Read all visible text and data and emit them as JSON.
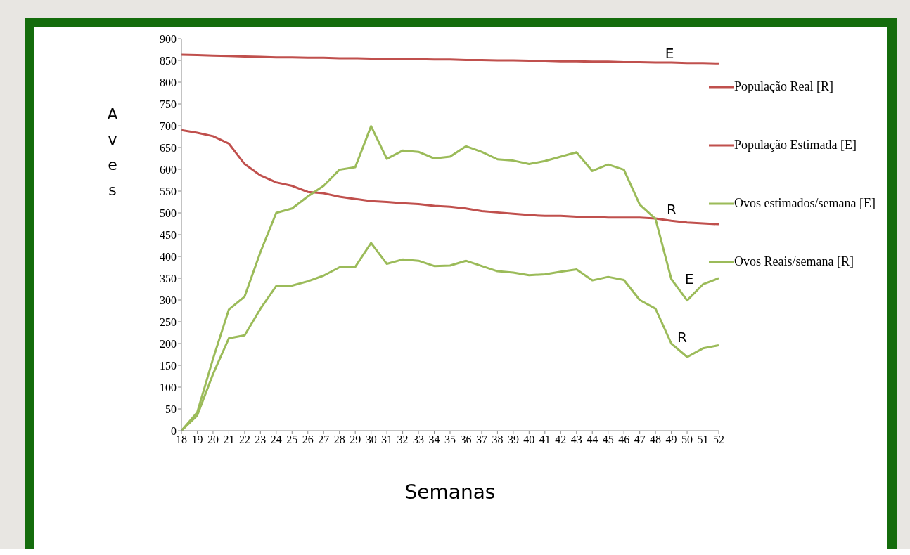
{
  "chart_data": {
    "type": "line",
    "xlabel": "Semanas",
    "ylabel": "Aves",
    "x": [
      18,
      19,
      20,
      21,
      22,
      23,
      24,
      25,
      26,
      27,
      28,
      29,
      30,
      31,
      32,
      33,
      34,
      35,
      36,
      37,
      38,
      39,
      40,
      41,
      42,
      43,
      44,
      45,
      46,
      47,
      48,
      49,
      50,
      51,
      52
    ],
    "xlim": [
      18,
      52
    ],
    "xticks": [
      18,
      19,
      20,
      21,
      22,
      23,
      24,
      25,
      26,
      27,
      28,
      29,
      30,
      31,
      32,
      33,
      34,
      35,
      36,
      37,
      38,
      39,
      40,
      41,
      42,
      43,
      44,
      45,
      46,
      47,
      48,
      49,
      50,
      51,
      52
    ],
    "ylim": [
      0,
      900
    ],
    "yticks": [
      0,
      50,
      100,
      150,
      200,
      250,
      300,
      350,
      400,
      450,
      500,
      550,
      600,
      650,
      700,
      750,
      800,
      850,
      900
    ],
    "grid": false,
    "legend": "right",
    "marker": "none",
    "line_style": "solid",
    "series": [
      {
        "name": "População Real [R]",
        "color": "#c0504d",
        "values": [
          690,
          684,
          676,
          659,
          612,
          586,
          570,
          562,
          548,
          545,
          537,
          532,
          527,
          525,
          522,
          520,
          516,
          514,
          510,
          504,
          501,
          498,
          495,
          493,
          493,
          491,
          491,
          489,
          489,
          489,
          487,
          482,
          478,
          476,
          474
        ]
      },
      {
        "name": "População Estimada [E]",
        "color": "#c0504d",
        "values": [
          863,
          862,
          861,
          860,
          859,
          858,
          857,
          857,
          856,
          856,
          855,
          855,
          854,
          854,
          853,
          853,
          852,
          852,
          851,
          851,
          850,
          850,
          849,
          849,
          848,
          848,
          847,
          847,
          846,
          846,
          845,
          845,
          844,
          844,
          843
        ]
      },
      {
        "name": "Ovos estimados/semana [E]",
        "color": "#9bbb59",
        "values": [
          0,
          42,
          165,
          278,
          308,
          410,
          500,
          510,
          538,
          562,
          599,
          605,
          699,
          624,
          643,
          640,
          625,
          629,
          653,
          640,
          623,
          620,
          612,
          619,
          629,
          639,
          596,
          611,
          599,
          519,
          486,
          348,
          299,
          336,
          350
        ]
      },
      {
        "name": "Ovos Reais/semana [R]",
        "color": "#9bbb59",
        "values": [
          0,
          35,
          130,
          212,
          219,
          280,
          332,
          333,
          343,
          356,
          375,
          376,
          431,
          383,
          393,
          390,
          378,
          379,
          390,
          378,
          366,
          363,
          357,
          359,
          365,
          370,
          345,
          353,
          346,
          300,
          280,
          200,
          169,
          189,
          196
        ]
      }
    ],
    "annotations": [
      "E",
      "R",
      "E",
      "R"
    ]
  }
}
